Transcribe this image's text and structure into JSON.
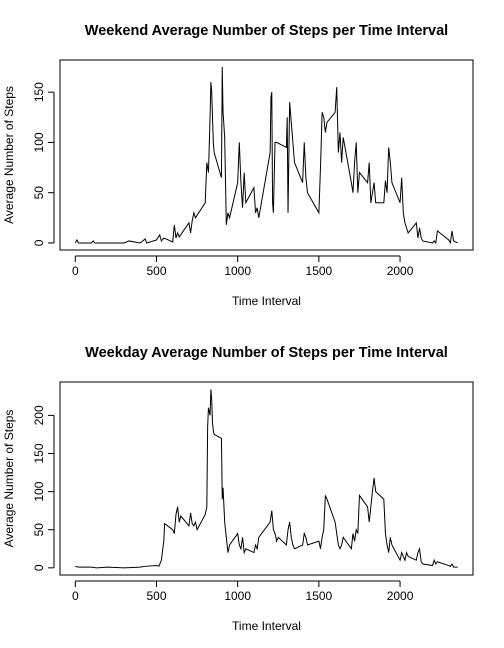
{
  "chart_data": [
    {
      "type": "line",
      "title": "Weekend Average Number of Steps per Time Interval",
      "x_label": "Time Interval",
      "y_label": "Average Number of Steps",
      "color": "#000000",
      "xlim": [
        -94.2,
        2449.2
      ],
      "xticks": [
        0,
        500,
        1000,
        1500,
        2000
      ],
      "ylim": [
        -7,
        182
      ],
      "yticks": [
        0,
        50,
        100,
        150
      ],
      "x": [
        0,
        10,
        20,
        100,
        110,
        120,
        300,
        330,
        400,
        430,
        440,
        500,
        520,
        530,
        545,
        600,
        610,
        620,
        630,
        640,
        700,
        710,
        720,
        730,
        740,
        800,
        810,
        820,
        830,
        835,
        840,
        850,
        855,
        900,
        905,
        910,
        920,
        930,
        940,
        950,
        1000,
        1010,
        1020,
        1030,
        1040,
        1050,
        1100,
        1110,
        1120,
        1130,
        1200,
        1205,
        1210,
        1215,
        1220,
        1230,
        1240,
        1300,
        1305,
        1310,
        1320,
        1330,
        1340,
        1350,
        1400,
        1410,
        1420,
        1430,
        1500,
        1510,
        1520,
        1530,
        1540,
        1550,
        1600,
        1610,
        1620,
        1630,
        1640,
        1650,
        1700,
        1710,
        1720,
        1730,
        1740,
        1750,
        1800,
        1810,
        1820,
        1830,
        1840,
        1850,
        1900,
        1910,
        1920,
        1930,
        1940,
        1950,
        2000,
        2010,
        2020,
        2030,
        2040,
        2050,
        2100,
        2110,
        2120,
        2130,
        2140,
        2200,
        2210,
        2220,
        2230,
        2300,
        2310,
        2320,
        2330,
        2355
      ],
      "values": [
        0,
        3,
        0,
        0,
        2,
        0,
        0,
        2,
        0,
        4,
        0,
        3,
        8,
        2,
        5,
        1,
        18,
        5,
        10,
        6,
        20,
        10,
        22,
        30,
        25,
        40,
        80,
        70,
        125,
        160,
        150,
        100,
        90,
        65,
        175,
        130,
        105,
        18,
        30,
        25,
        60,
        100,
        60,
        35,
        70,
        40,
        55,
        30,
        35,
        25,
        90,
        145,
        150,
        40,
        30,
        100,
        100,
        95,
        125,
        30,
        140,
        120,
        100,
        80,
        60,
        100,
        65,
        50,
        30,
        75,
        130,
        125,
        110,
        120,
        130,
        155,
        90,
        110,
        80,
        105,
        60,
        50,
        80,
        100,
        50,
        70,
        60,
        80,
        40,
        50,
        60,
        40,
        40,
        62,
        50,
        95,
        80,
        60,
        40,
        65,
        30,
        20,
        15,
        10,
        20,
        5,
        15,
        5,
        2,
        0,
        2,
        0,
        12,
        3,
        0,
        12,
        2,
        0
      ]
    },
    {
      "type": "line",
      "title": "Weekday Average Number of Steps per Time Interval",
      "x_label": "Time Interval",
      "y_label": "Average Number of Steps",
      "color": "#000000",
      "xlim": [
        -94.2,
        2449.2
      ],
      "xticks": [
        0,
        500,
        1000,
        1500,
        2000
      ],
      "ylim": [
        -9.4,
        243.8
      ],
      "yticks": [
        0,
        50,
        100,
        150,
        200
      ],
      "x": [
        0,
        20,
        100,
        130,
        200,
        300,
        400,
        430,
        500,
        515,
        530,
        545,
        550,
        600,
        610,
        620,
        630,
        640,
        650,
        700,
        710,
        720,
        730,
        740,
        750,
        800,
        810,
        815,
        820,
        830,
        835,
        840,
        845,
        850,
        855,
        900,
        905,
        910,
        920,
        930,
        940,
        950,
        1000,
        1010,
        1020,
        1030,
        1040,
        1050,
        1100,
        1110,
        1120,
        1130,
        1200,
        1210,
        1220,
        1230,
        1240,
        1250,
        1300,
        1310,
        1320,
        1330,
        1340,
        1350,
        1400,
        1410,
        1420,
        1430,
        1500,
        1510,
        1520,
        1530,
        1540,
        1550,
        1600,
        1610,
        1620,
        1630,
        1640,
        1650,
        1700,
        1710,
        1720,
        1730,
        1740,
        1750,
        1800,
        1810,
        1820,
        1830,
        1840,
        1850,
        1900,
        1910,
        1920,
        1930,
        1940,
        1950,
        2000,
        2010,
        2020,
        2030,
        2040,
        2050,
        2100,
        2110,
        2120,
        2130,
        2140,
        2200,
        2210,
        2220,
        2230,
        2300,
        2310,
        2320,
        2330,
        2355
      ],
      "values": [
        2,
        1,
        1,
        0,
        1,
        0,
        1,
        2,
        3,
        2,
        10,
        35,
        58,
        50,
        45,
        70,
        80,
        60,
        68,
        55,
        72,
        58,
        55,
        60,
        50,
        70,
        80,
        185,
        210,
        200,
        234,
        220,
        190,
        180,
        175,
        170,
        90,
        105,
        60,
        40,
        20,
        30,
        45,
        30,
        25,
        40,
        20,
        25,
        20,
        30,
        25,
        40,
        60,
        75,
        50,
        45,
        35,
        40,
        30,
        50,
        60,
        40,
        30,
        25,
        30,
        45,
        40,
        30,
        35,
        25,
        40,
        50,
        95,
        90,
        60,
        45,
        30,
        25,
        30,
        40,
        25,
        45,
        35,
        50,
        45,
        95,
        80,
        60,
        80,
        100,
        118,
        100,
        90,
        45,
        30,
        20,
        40,
        30,
        10,
        20,
        15,
        10,
        20,
        15,
        10,
        20,
        25,
        8,
        5,
        3,
        10,
        5,
        8,
        3,
        2,
        5,
        1,
        1
      ]
    }
  ]
}
